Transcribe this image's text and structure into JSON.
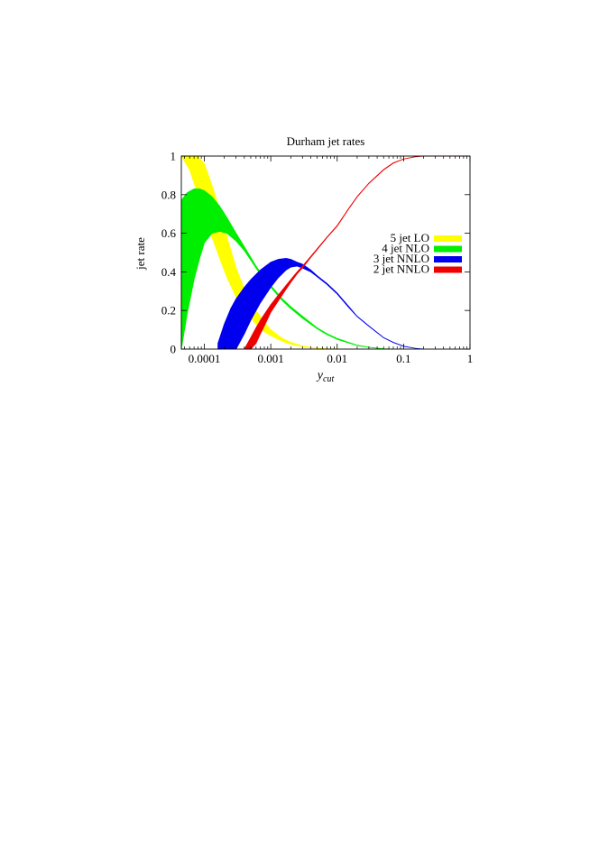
{
  "chart_data": {
    "type": "area",
    "title": "Durham jet rates",
    "xlabel_main": "y",
    "xlabel_sub": "cut",
    "ylabel": "jet rate",
    "x_scale": "log",
    "xlim": [
      4.5e-05,
      1
    ],
    "ylim": [
      0,
      1
    ],
    "x_ticks": [
      {
        "value": 0.0001,
        "label": "0.0001"
      },
      {
        "value": 0.001,
        "label": "0.001"
      },
      {
        "value": 0.01,
        "label": "0.01"
      },
      {
        "value": 0.1,
        "label": "0.1"
      },
      {
        "value": 1,
        "label": "1"
      }
    ],
    "y_ticks": [
      {
        "value": 0,
        "label": "0"
      },
      {
        "value": 0.2,
        "label": "0.2"
      },
      {
        "value": 0.4,
        "label": "0.4"
      },
      {
        "value": 0.6,
        "label": "0.6"
      },
      {
        "value": 0.8,
        "label": "0.8"
      },
      {
        "value": 1,
        "label": "1"
      }
    ],
    "legend_position": "right",
    "series": [
      {
        "name": "5 jet LO",
        "color": "#ffff00",
        "x": [
          4.5e-05,
          6e-05,
          8e-05,
          0.0001,
          0.00013,
          0.00017,
          0.00022,
          0.0003,
          0.0004,
          0.0006,
          0.0008,
          0.001,
          0.0015,
          0.002,
          0.003,
          0.005,
          0.007,
          0.01,
          0.02
        ],
        "upper": [
          1.0,
          1.0,
          1.0,
          0.96,
          0.85,
          0.72,
          0.58,
          0.42,
          0.31,
          0.2,
          0.14,
          0.1,
          0.055,
          0.035,
          0.016,
          0.005,
          0.002,
          0.0005,
          0.0
        ],
        "lower": [
          1.0,
          0.93,
          0.8,
          0.69,
          0.58,
          0.47,
          0.37,
          0.27,
          0.2,
          0.13,
          0.09,
          0.07,
          0.04,
          0.025,
          0.012,
          0.004,
          0.0015,
          0.0004,
          0.0
        ]
      },
      {
        "name": "4 jet NLO",
        "color": "#00ee00",
        "x": [
          4.5e-05,
          5.5e-05,
          7e-05,
          8.5e-05,
          0.0001,
          0.00013,
          0.00017,
          0.00022,
          0.0003,
          0.0004,
          0.0006,
          0.0008,
          0.001,
          0.0015,
          0.002,
          0.003,
          0.005,
          0.007,
          0.01,
          0.02,
          0.03,
          0.05,
          0.07
        ],
        "upper": [
          0.77,
          0.81,
          0.83,
          0.83,
          0.82,
          0.79,
          0.74,
          0.68,
          0.6,
          0.53,
          0.43,
          0.37,
          0.33,
          0.26,
          0.22,
          0.17,
          0.11,
          0.08,
          0.055,
          0.02,
          0.01,
          0.002,
          0.0
        ],
        "lower": [
          0.0,
          0.18,
          0.36,
          0.47,
          0.55,
          0.6,
          0.61,
          0.6,
          0.56,
          0.51,
          0.42,
          0.36,
          0.32,
          0.25,
          0.21,
          0.16,
          0.105,
          0.075,
          0.05,
          0.018,
          0.009,
          0.0015,
          0.0
        ]
      },
      {
        "name": "3 jet NNLO",
        "color": "#0000ee",
        "x": [
          0.00016,
          0.0002,
          0.00025,
          0.0003,
          0.0004,
          0.0005,
          0.0007,
          0.001,
          0.0013,
          0.0017,
          0.002,
          0.0025,
          0.003,
          0.004,
          0.005,
          0.007,
          0.01,
          0.015,
          0.02,
          0.03,
          0.05,
          0.07,
          0.1,
          0.15,
          0.2
        ],
        "upper": [
          0.03,
          0.13,
          0.21,
          0.26,
          0.32,
          0.36,
          0.41,
          0.45,
          0.465,
          0.47,
          0.465,
          0.45,
          0.44,
          0.41,
          0.38,
          0.34,
          0.29,
          0.22,
          0.17,
          0.12,
          0.06,
          0.035,
          0.015,
          0.004,
          0.0
        ],
        "lower": [
          0.0,
          0.0,
          0.0,
          0.0,
          0.08,
          0.15,
          0.24,
          0.32,
          0.37,
          0.41,
          0.425,
          0.43,
          0.42,
          0.4,
          0.375,
          0.335,
          0.285,
          0.215,
          0.168,
          0.118,
          0.059,
          0.034,
          0.014,
          0.004,
          0.0
        ]
      },
      {
        "name": "2 jet NNLO",
        "color": "#ee0000",
        "x": [
          0.0004,
          0.0005,
          0.0006,
          0.0007,
          0.0008,
          0.001,
          0.0013,
          0.0017,
          0.002,
          0.0025,
          0.003,
          0.004,
          0.005,
          0.007,
          0.01,
          0.015,
          0.02,
          0.03,
          0.05,
          0.07,
          0.1,
          0.15,
          0.2,
          0.3,
          1
        ],
        "upper": [
          0.0,
          0.06,
          0.11,
          0.15,
          0.18,
          0.23,
          0.28,
          0.33,
          0.36,
          0.4,
          0.43,
          0.48,
          0.52,
          0.58,
          0.64,
          0.73,
          0.79,
          0.86,
          0.93,
          0.965,
          0.985,
          0.997,
          1.0,
          1.0,
          1.0
        ],
        "lower": [
          0.0,
          0.0,
          0.03,
          0.08,
          0.12,
          0.19,
          0.25,
          0.31,
          0.345,
          0.39,
          0.42,
          0.475,
          0.515,
          0.577,
          0.637,
          0.727,
          0.788,
          0.858,
          0.928,
          0.963,
          0.984,
          0.996,
          1.0,
          1.0,
          1.0
        ]
      }
    ]
  }
}
